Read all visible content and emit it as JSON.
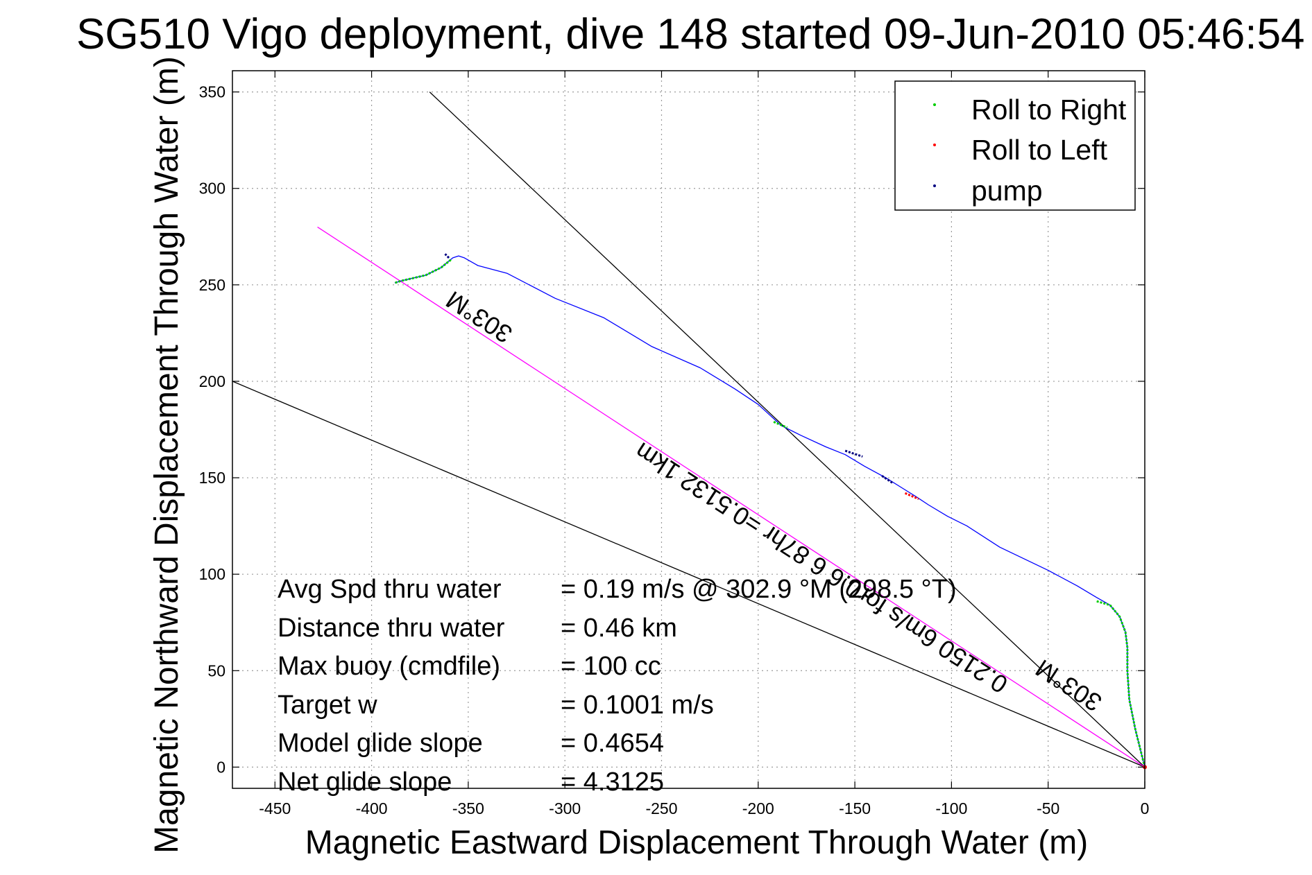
{
  "chart_data": {
    "type": "line",
    "title": "SG510 Vigo deployment, dive 148 started 09-Jun-2010 05:46:54",
    "xlabel": "Magnetic Eastward Displacement Through Water (m)",
    "ylabel": "Magnetic Northward Displacement Through Water (m)",
    "xlim": [
      -472,
      0
    ],
    "ylim": [
      -11,
      361
    ],
    "xticks": [
      -450,
      -400,
      -350,
      -300,
      -250,
      -200,
      -150,
      -100,
      -50,
      0
    ],
    "yticks": [
      0,
      50,
      100,
      150,
      200,
      250,
      300,
      350
    ],
    "grid": true,
    "legend_position": "top-right",
    "legend": [
      {
        "label": "Roll to Right",
        "color": "#00cc00"
      },
      {
        "label": "Roll to Left",
        "color": "#ff0000"
      },
      {
        "label": "pump",
        "color": "#000080"
      }
    ],
    "track": {
      "color": "#0000ff",
      "x": [
        0,
        -2,
        -5,
        -8,
        -9,
        -9,
        -10,
        -13,
        -18,
        -25,
        -35,
        -50,
        -75,
        -92,
        -102,
        -112,
        -118,
        -126,
        -134,
        -145,
        -155,
        -165,
        -178,
        -188,
        -200,
        -212,
        -230,
        -255,
        -280,
        -305,
        -330,
        -345,
        -352,
        -355,
        -358,
        -364,
        -372,
        -385,
        -388
      ],
      "y": [
        0,
        8,
        20,
        35,
        50,
        62,
        70,
        78,
        84,
        88,
        94,
        102,
        114,
        125,
        130,
        136,
        140,
        145,
        150,
        156,
        162,
        166,
        172,
        177,
        188,
        196,
        207,
        218,
        233,
        243,
        256,
        260,
        264,
        265,
        264,
        259,
        255,
        252,
        251
      ]
    },
    "roll_right_segments": [
      {
        "x": [
          0,
          -2,
          -5,
          -8,
          -9,
          -9,
          -10,
          -13,
          -18,
          -25
        ],
        "y": [
          0,
          8,
          20,
          35,
          50,
          62,
          70,
          78,
          84,
          86
        ]
      },
      {
        "x": [
          -192,
          -185
        ],
        "y": [
          179,
          176
        ]
      },
      {
        "x": [
          -359,
          -364,
          -372,
          -385,
          -388
        ],
        "y": [
          263,
          259,
          255,
          252,
          251
        ]
      }
    ],
    "roll_left_segments": [
      {
        "x": [
          -124,
          -117
        ],
        "y": [
          142,
          139
        ]
      }
    ],
    "pump_segments": [
      {
        "x": [
          -155,
          -146
        ],
        "y": [
          164,
          161
        ]
      },
      {
        "x": [
          -136,
          -130
        ],
        "y": [
          151,
          147
        ]
      },
      {
        "x": [
          -360,
          -362
        ],
        "y": [
          264,
          266
        ]
      }
    ],
    "reference_lines": [
      {
        "x": [
          0,
          -370
        ],
        "y": [
          0,
          350
        ],
        "color": "#000000"
      },
      {
        "x": [
          0,
          -472
        ],
        "y": [
          0,
          200
        ],
        "color": "#000000"
      },
      {
        "x": [
          0,
          -428
        ],
        "y": [
          0,
          280
        ],
        "color": "#ff00ff"
      }
    ],
    "annotations": [
      {
        "text": "303°M",
        "x": -342,
        "y": 237,
        "angle": 33
      },
      {
        "text": "303°M",
        "x": -37,
        "y": 46,
        "angle": 33
      },
      {
        "text": "0.2150 6m/s for0.6 6 87hr =0.5132 1km",
        "x": -165,
        "y": 107,
        "angle": 33
      }
    ],
    "stats": [
      {
        "label": "Avg Spd thru water",
        "value": "=  0.19 m/s @ 302.9 °M (298.5 °T)"
      },
      {
        "label": "Distance thru water",
        "value": "=  0.46 km"
      },
      {
        "label": "Max buoy (cmdfile)",
        "value": "= 100 cc"
      },
      {
        "label": "Target w",
        "value": "= 0.1001 m/s"
      },
      {
        "label": "Model glide slope",
        "value": "= 0.4654"
      },
      {
        "label": "Net glide slope",
        "value": "= 4.3125"
      }
    ]
  }
}
